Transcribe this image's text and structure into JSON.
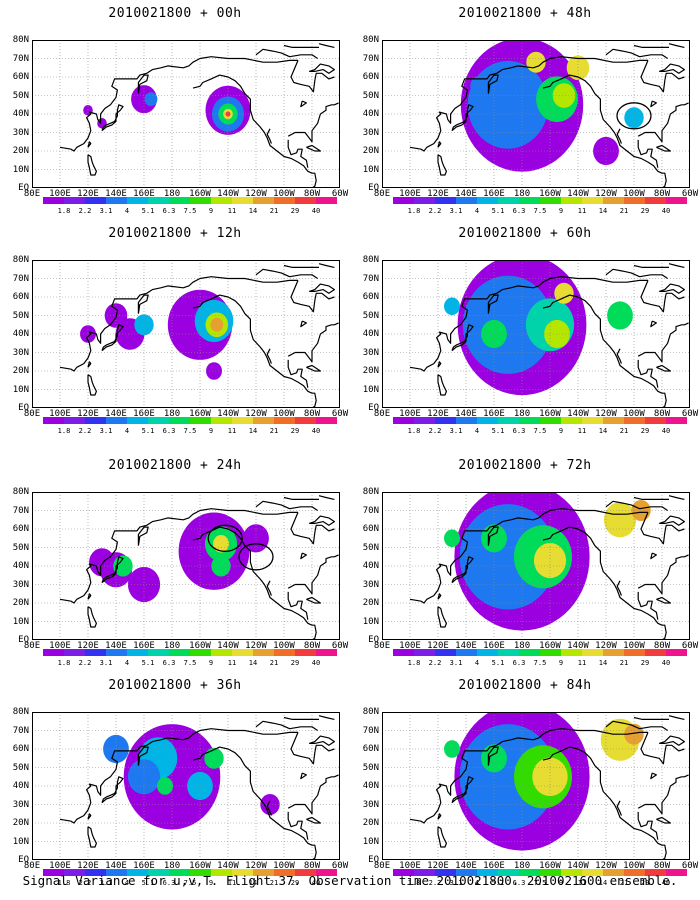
{
  "panels": [
    {
      "title": "2010021800 + 00h",
      "level": 0,
      "circles": []
    },
    {
      "title": "2010021800 + 12h",
      "level": 1,
      "circles": []
    },
    {
      "title": "2010021800 + 24h",
      "level": 2,
      "circles": [
        {
          "lon": -142,
          "lat": 55
        },
        {
          "lon": -120,
          "lat": 45
        }
      ]
    },
    {
      "title": "2010021800 + 36h",
      "level": 3,
      "circles": []
    },
    {
      "title": "2010021800 + 48h",
      "level": 4,
      "circles": [
        {
          "lon": -100,
          "lat": 39
        }
      ]
    },
    {
      "title": "2010021800 + 60h",
      "level": 5,
      "circles": []
    },
    {
      "title": "2010021800 + 72h",
      "level": 6,
      "circles": []
    },
    {
      "title": "2010021800 + 84h",
      "level": 7,
      "circles": []
    }
  ],
  "axes": {
    "lat_labels": [
      "80N",
      "70N",
      "60N",
      "50N",
      "40N",
      "30N",
      "20N",
      "10N",
      "EQ"
    ],
    "lon_labels": [
      "80E",
      "100E",
      "120E",
      "140E",
      "160E",
      "180",
      "160W",
      "140W",
      "120W",
      "100W",
      "80W",
      "60W"
    ],
    "lat_range": [
      0,
      80
    ],
    "lon_range": [
      80,
      300
    ]
  },
  "colorbar": {
    "labels": [
      "1.8",
      "2.2",
      "3.1",
      "4",
      "5.1",
      "6.3",
      "7.5",
      "9",
      "11",
      "14",
      "21",
      "29",
      "40"
    ],
    "colors": [
      "#9b00e0",
      "#7d1ee6",
      "#3232f0",
      "#1e78f0",
      "#00b4e6",
      "#00d2aa",
      "#00dc5a",
      "#32dc00",
      "#b4e600",
      "#e6dc32",
      "#e6a032",
      "#f06e28",
      "#f03c3c",
      "#f0148c"
    ]
  },
  "caption": "Signal Variance for u,v,T. Flight 37. Observation time 2010021800. 2010021600 ensemble."
}
